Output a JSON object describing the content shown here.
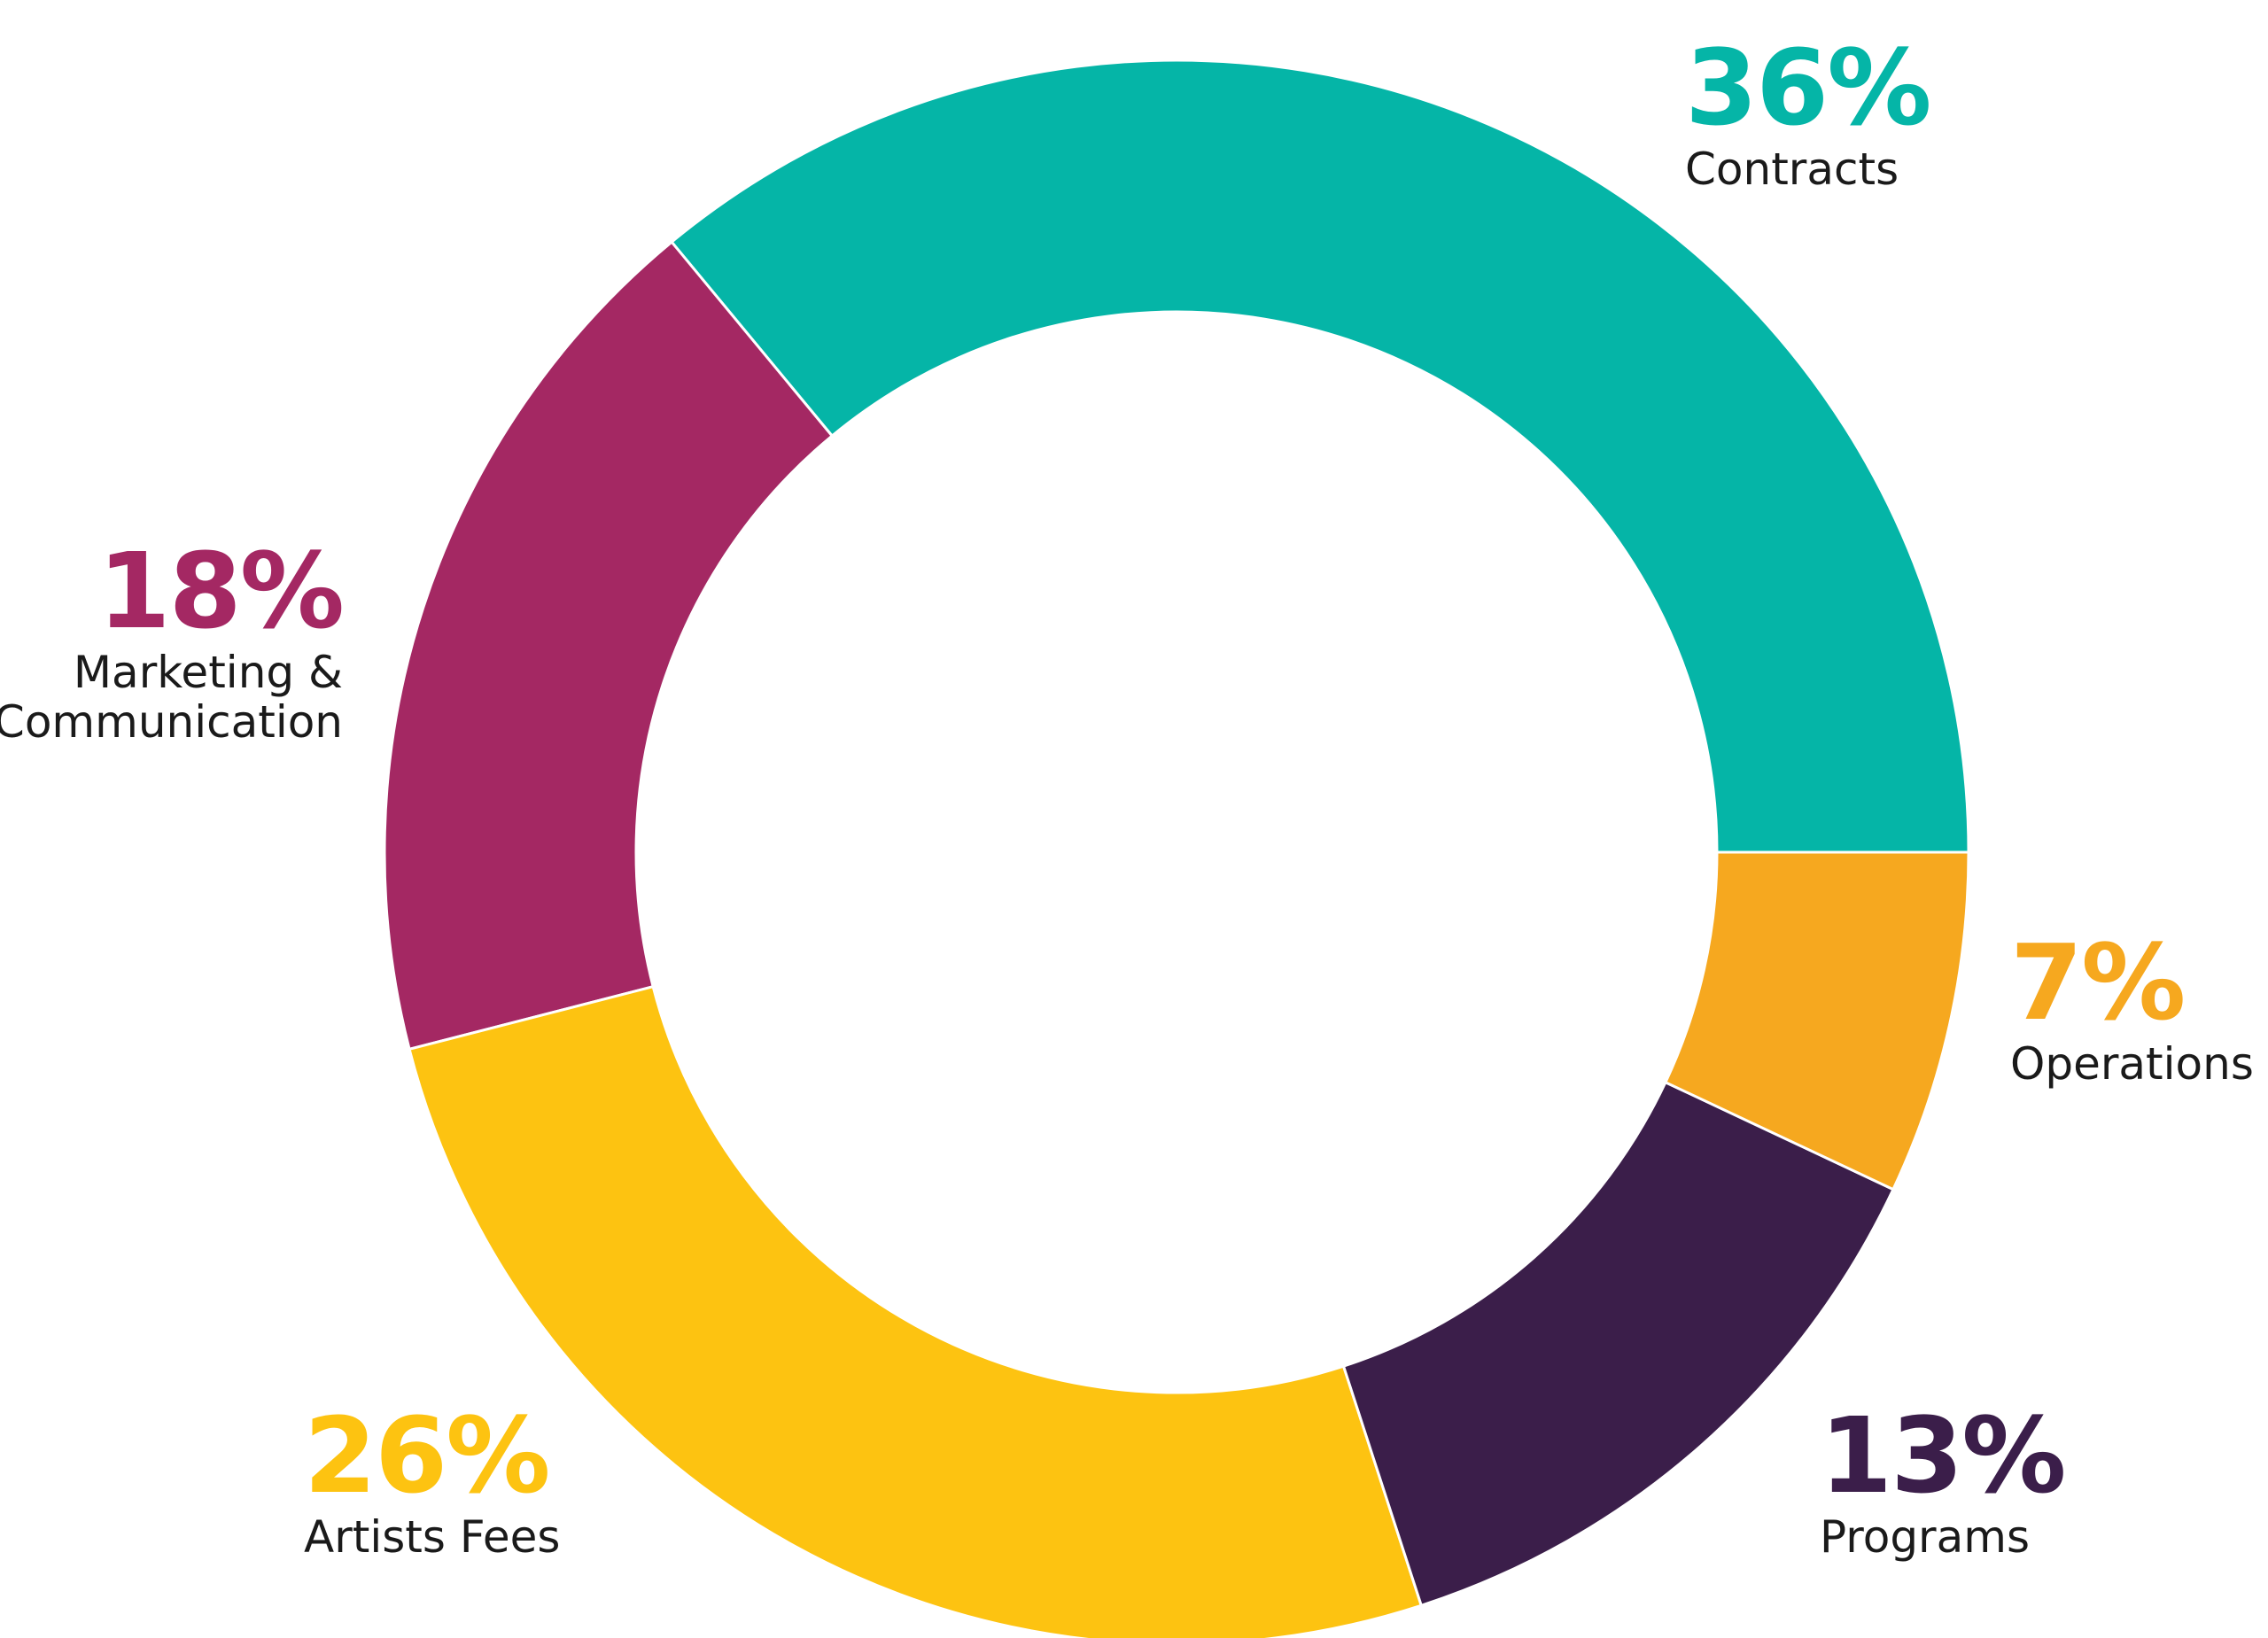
{
  "colors": {
    "background": "#ffffff",
    "label_text": "#1a1a1a"
  },
  "chart_data": {
    "type": "pie",
    "variant": "donut",
    "title": "",
    "legend": "none",
    "start_angle_deg": 0,
    "direction": "counterclockwise from 3 o'clock",
    "slices": [
      {
        "label_lines": [
          "Contracts"
        ],
        "value": 36,
        "value_label": "36%",
        "color": "#05b5a7"
      },
      {
        "label_lines": [
          "Marketing &",
          "Communication"
        ],
        "value": 18,
        "value_label": "18%",
        "color": "#a42863"
      },
      {
        "label_lines": [
          "Artists Fees"
        ],
        "value": 26,
        "value_label": "26%",
        "color": "#fdc311"
      },
      {
        "label_lines": [
          "Programs"
        ],
        "value": 13,
        "value_label": "13%",
        "color": "#3b1e4a"
      },
      {
        "label_lines": [
          "Operations"
        ],
        "value": 7,
        "value_label": "7%",
        "color": "#f6a81f"
      }
    ]
  }
}
